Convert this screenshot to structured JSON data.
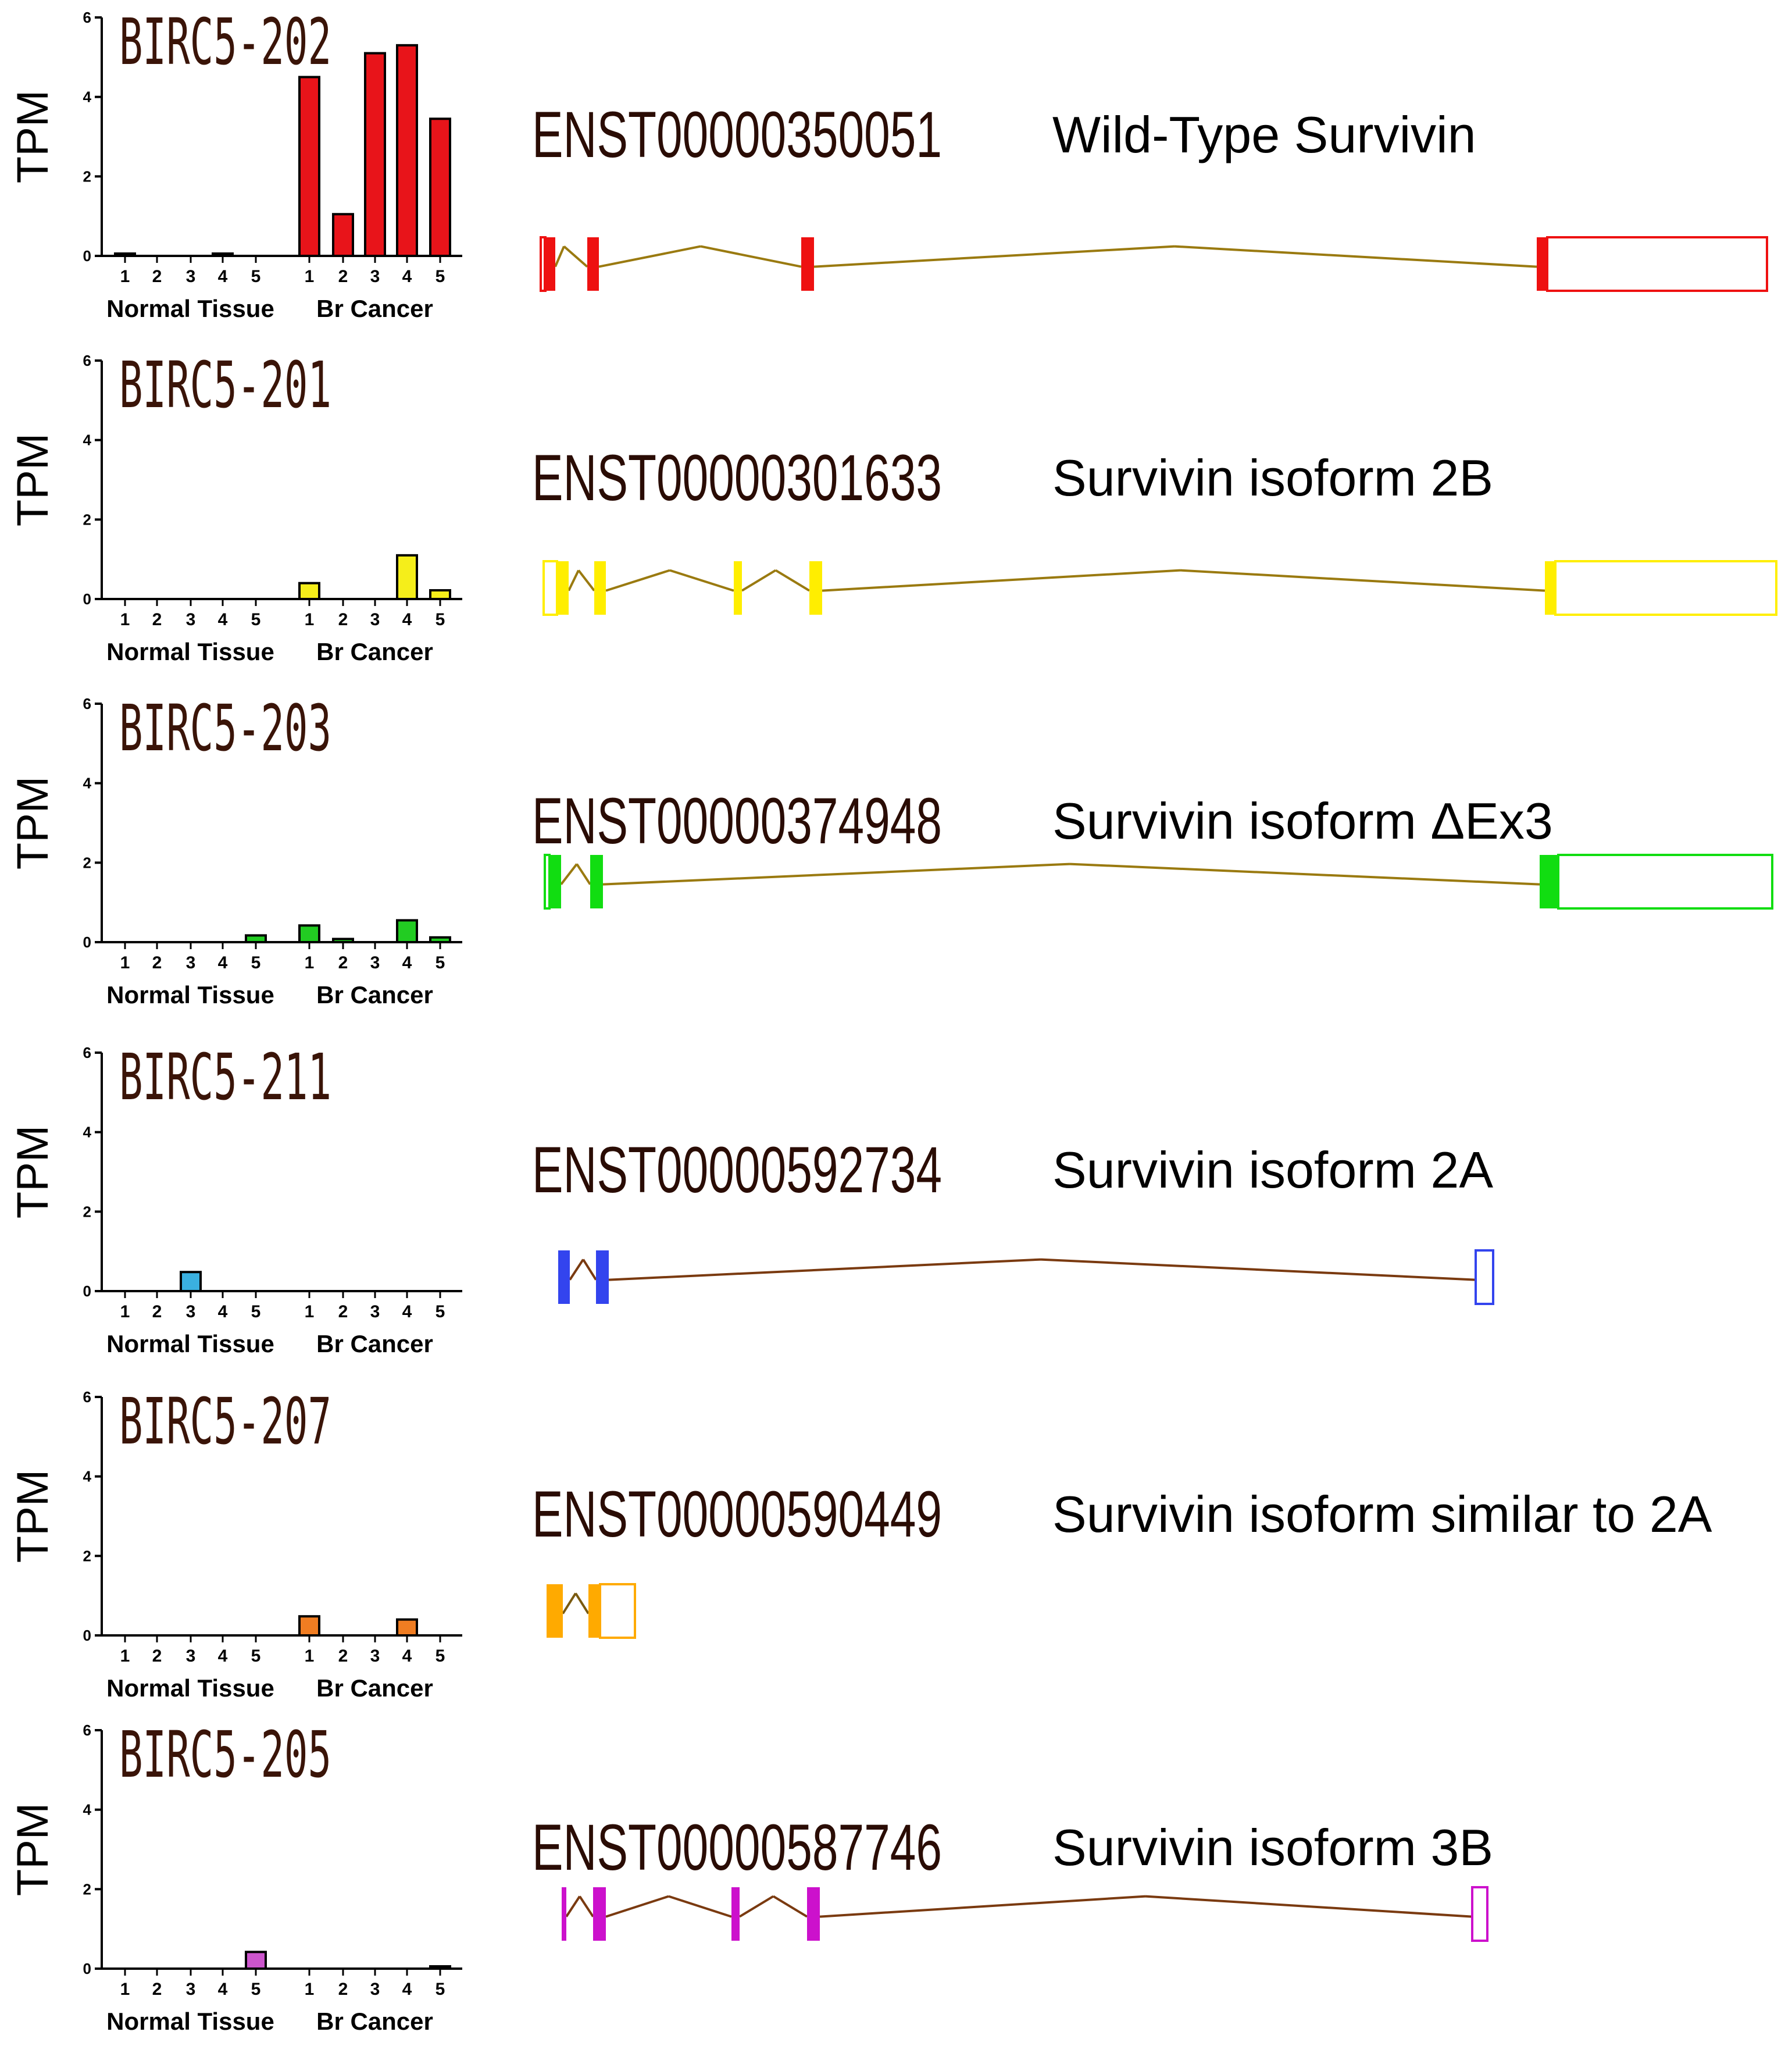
{
  "chart_data": [
    {
      "type": "bar",
      "title": "BIRC5-202",
      "ylabel": "TPM",
      "ylim": [
        0,
        6
      ],
      "yticks": [
        "0",
        "2",
        "4",
        "6"
      ],
      "groups": [
        "Normal Tissue",
        "Br Cancer"
      ],
      "categories": [
        "1",
        "2",
        "3",
        "4",
        "5"
      ],
      "normal_values": [
        0.03,
        0,
        0,
        0.04,
        0
      ],
      "cancer_values": [
        4.5,
        1.05,
        5.1,
        5.3,
        3.45
      ],
      "color": "#e8141a",
      "transcript": "ENST00000350051",
      "isoform": "Wild-Type Survivin"
    },
    {
      "type": "bar",
      "title": "BIRC5-201",
      "ylabel": "TPM",
      "ylim": [
        0,
        6
      ],
      "yticks": [
        "0",
        "2",
        "4",
        "6"
      ],
      "groups": [
        "Normal Tissue",
        "Br Cancer"
      ],
      "categories": [
        "1",
        "2",
        "3",
        "4",
        "5"
      ],
      "normal_values": [
        0,
        0,
        0,
        0,
        0
      ],
      "cancer_values": [
        0.4,
        0,
        0,
        1.1,
        0.22
      ],
      "color": "#f5ee1a",
      "transcript": "ENST00000301633",
      "isoform": "Survivin isoform 2B"
    },
    {
      "type": "bar",
      "title": "BIRC5-203",
      "ylabel": "TPM",
      "ylim": [
        0,
        6
      ],
      "yticks": [
        "0",
        "2",
        "4",
        "6"
      ],
      "groups": [
        "Normal Tissue",
        "Br Cancer"
      ],
      "categories": [
        "1",
        "2",
        "3",
        "4",
        "5"
      ],
      "normal_values": [
        0,
        0,
        0,
        0,
        0.17
      ],
      "cancer_values": [
        0.42,
        0.08,
        0,
        0.55,
        0.12
      ],
      "color": "#22cc22",
      "transcript": "ENST00000374948",
      "isoform": "Survivin isoform ΔEx3"
    },
    {
      "type": "bar",
      "title": "BIRC5-211",
      "ylabel": "TPM",
      "ylim": [
        0,
        6
      ],
      "yticks": [
        "0",
        "2",
        "4",
        "6"
      ],
      "groups": [
        "Normal Tissue",
        "Br Cancer"
      ],
      "categories": [
        "1",
        "2",
        "3",
        "4",
        "5"
      ],
      "normal_values": [
        0,
        0,
        0.48,
        0,
        0
      ],
      "cancer_values": [
        0,
        0,
        0,
        0,
        0
      ],
      "color": "#3ab0e0",
      "transcript": "ENST00000592734",
      "isoform": "Survivin isoform 2A"
    },
    {
      "type": "bar",
      "title": "BIRC5-207",
      "ylabel": "TPM",
      "ylim": [
        0,
        6
      ],
      "yticks": [
        "0",
        "2",
        "4",
        "6"
      ],
      "groups": [
        "Normal Tissue",
        "Br Cancer"
      ],
      "categories": [
        "1",
        "2",
        "3",
        "4",
        "5"
      ],
      "normal_values": [
        0,
        0,
        0,
        0,
        0
      ],
      "cancer_values": [
        0.48,
        0,
        0,
        0.4,
        0
      ],
      "color": "#f07d22",
      "transcript": "ENST00000590449",
      "isoform": "Survivin isoform similar to 2A"
    },
    {
      "type": "bar",
      "title": "BIRC5-205",
      "ylabel": "TPM",
      "ylim": [
        0,
        6
      ],
      "yticks": [
        "0",
        "2",
        "4",
        "6"
      ],
      "groups": [
        "Normal Tissue",
        "Br Cancer"
      ],
      "categories": [
        "1",
        "2",
        "3",
        "4",
        "5"
      ],
      "normal_values": [
        0,
        0,
        0,
        0,
        0.42
      ],
      "cancer_values": [
        0,
        0,
        0,
        0,
        0.03
      ],
      "color": "#cc55cc",
      "transcript": "ENST00000587746",
      "isoform": "Survivin isoform 3B"
    }
  ],
  "gene_structures": [
    {
      "color": "#ee1111",
      "intron_color": "#9a7a10"
    },
    {
      "color": "#ffee00",
      "intron_color": "#9a7a10"
    },
    {
      "color": "#11dd11",
      "intron_color": "#9a7a10"
    },
    {
      "color": "#3344ee",
      "intron_color": "#7a3a10"
    },
    {
      "color": "#ffaa00",
      "intron_color": "#7a5a10"
    },
    {
      "color": "#cc11cc",
      "intron_color": "#7a3a10"
    }
  ]
}
